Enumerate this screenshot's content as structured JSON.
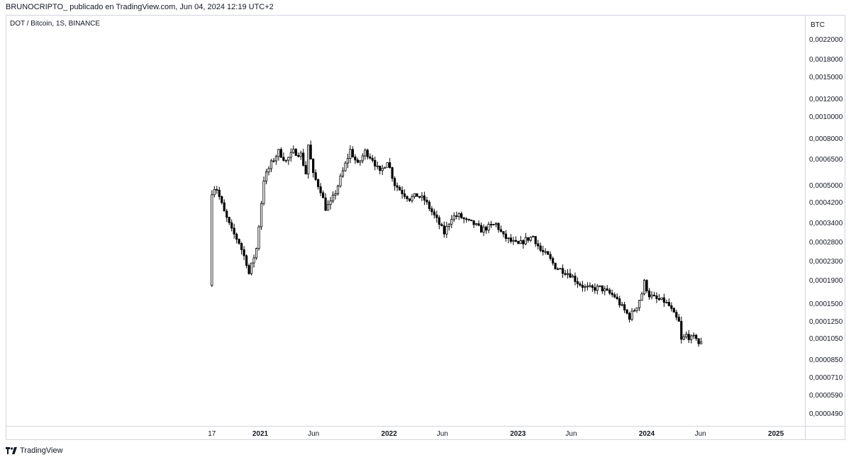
{
  "header": {
    "author": "BRUNOCRIPTO_",
    "published_line": "BRUNOCRIPTO_  publicado en TradingView.com, Jun 04, 2024 12:19 UTC+2"
  },
  "symbol_title": "DOT / Bitcoin, 1S, BINANCE",
  "currency": "BTC",
  "brand": "TradingView",
  "colors": {
    "candle": "#000000",
    "border": "#d1d4dc",
    "background": "#ffffff"
  },
  "chart_data": {
    "type": "candlestick",
    "title": "DOT / Bitcoin, 1S, BINANCE",
    "ylabel": "BTC",
    "y_scale": "log",
    "ylim": [
      4.4e-05,
      0.000248
    ],
    "y_ticks": [
      "0,0022000",
      "0,0018000",
      "0,0015000",
      "0,0012000",
      "0,0010000",
      "0,0008000",
      "0,0006500",
      "0,0005000",
      "0,0004200",
      "0,0003400",
      "0,0002800",
      "0,0002300",
      "0,0001900",
      "0,0001500",
      "0,0001250",
      "0,0001050",
      "0,0000850",
      "0,0000710",
      "0,0000590",
      "0,0000490"
    ],
    "x_ticks": [
      {
        "label": "17",
        "date": "2020-08-17",
        "bold": false
      },
      {
        "label": "2021",
        "date": "2021-01-01",
        "bold": true
      },
      {
        "label": "Jun",
        "date": "2021-06-01",
        "bold": false
      },
      {
        "label": "2022",
        "date": "2022-01-01",
        "bold": true
      },
      {
        "label": "Jun",
        "date": "2022-06-01",
        "bold": false
      },
      {
        "label": "2023",
        "date": "2023-01-01",
        "bold": true
      },
      {
        "label": "Jun",
        "date": "2023-06-01",
        "bold": false
      },
      {
        "label": "2024",
        "date": "2024-01-01",
        "bold": true
      },
      {
        "label": "Jun",
        "date": "2024-06-01",
        "bold": false
      },
      {
        "label": "2025",
        "date": "2025-01-01",
        "bold": true
      }
    ],
    "price_path": [
      [
        "2020-08-17",
        0.000182
      ],
      [
        "2020-08-24",
        0.000498
      ],
      [
        "2020-09-07",
        0.000485
      ],
      [
        "2020-09-28",
        0.000383
      ],
      [
        "2020-10-19",
        0.000318
      ],
      [
        "2020-11-09",
        0.000282
      ],
      [
        "2020-11-30",
        0.000229
      ],
      [
        "2020-12-07",
        0.000205
      ],
      [
        "2020-12-28",
        0.000265
      ],
      [
        "2021-01-18",
        0.000535
      ],
      [
        "2021-02-08",
        0.00063
      ],
      [
        "2021-03-01",
        0.00071
      ],
      [
        "2021-03-22",
        0.000645
      ],
      [
        "2021-04-12",
        0.00071
      ],
      [
        "2021-05-03",
        0.00069
      ],
      [
        "2021-05-17",
        0.00057
      ],
      [
        "2021-05-24",
        0.00076
      ],
      [
        "2021-06-07",
        0.00056
      ],
      [
        "2021-06-28",
        0.00048
      ],
      [
        "2021-07-12",
        0.0004
      ],
      [
        "2021-07-26",
        0.00042
      ],
      [
        "2021-08-09",
        0.00047
      ],
      [
        "2021-08-30",
        0.00058
      ],
      [
        "2021-09-20",
        0.00072
      ],
      [
        "2021-10-11",
        0.00062
      ],
      [
        "2021-11-01",
        0.00071
      ],
      [
        "2021-11-22",
        0.00066
      ],
      [
        "2021-12-13",
        0.00057
      ],
      [
        "2022-01-03",
        0.00065
      ],
      [
        "2022-01-24",
        0.00051
      ],
      [
        "2022-02-14",
        0.00047
      ],
      [
        "2022-03-07",
        0.00044
      ],
      [
        "2022-03-28",
        0.000455
      ],
      [
        "2022-04-18",
        0.000435
      ],
      [
        "2022-05-09",
        0.000385
      ],
      [
        "2022-05-30",
        0.00034
      ],
      [
        "2022-06-13",
        0.00031
      ],
      [
        "2022-07-04",
        0.000365
      ],
      [
        "2022-07-25",
        0.00037
      ],
      [
        "2022-08-15",
        0.00035
      ],
      [
        "2022-09-05",
        0.00034
      ],
      [
        "2022-09-26",
        0.00032
      ],
      [
        "2022-10-17",
        0.00033
      ],
      [
        "2022-11-07",
        0.00034
      ],
      [
        "2022-11-28",
        0.0003
      ],
      [
        "2022-12-19",
        0.000285
      ],
      [
        "2023-01-09",
        0.000275
      ],
      [
        "2023-01-30",
        0.00029
      ],
      [
        "2023-02-20",
        0.0003
      ],
      [
        "2023-03-13",
        0.00026
      ],
      [
        "2023-04-03",
        0.000245
      ],
      [
        "2023-04-24",
        0.00022
      ],
      [
        "2023-05-15",
        0.000212
      ],
      [
        "2023-06-05",
        0.000204
      ],
      [
        "2023-06-26",
        0.000188
      ],
      [
        "2023-07-17",
        0.000178
      ],
      [
        "2023-08-07",
        0.000176
      ],
      [
        "2023-08-28",
        0.000178
      ],
      [
        "2023-09-18",
        0.00017
      ],
      [
        "2023-10-09",
        0.000163
      ],
      [
        "2023-10-30",
        0.000146
      ],
      [
        "2023-11-20",
        0.000132
      ],
      [
        "2023-12-11",
        0.000148
      ],
      [
        "2023-12-25",
        0.000168
      ],
      [
        "2024-01-01",
        0.000188
      ],
      [
        "2024-01-15",
        0.000165
      ],
      [
        "2024-02-05",
        0.000158
      ],
      [
        "2024-02-26",
        0.000155
      ],
      [
        "2024-03-11",
        0.000148
      ],
      [
        "2024-03-25",
        0.000135
      ],
      [
        "2024-04-08",
        0.000125
      ],
      [
        "2024-04-15",
        0.000104
      ],
      [
        "2024-04-29",
        0.00011
      ],
      [
        "2024-05-13",
        0.000106
      ],
      [
        "2024-05-27",
        0.000108
      ],
      [
        "2024-06-03",
        0.000101
      ]
    ]
  }
}
